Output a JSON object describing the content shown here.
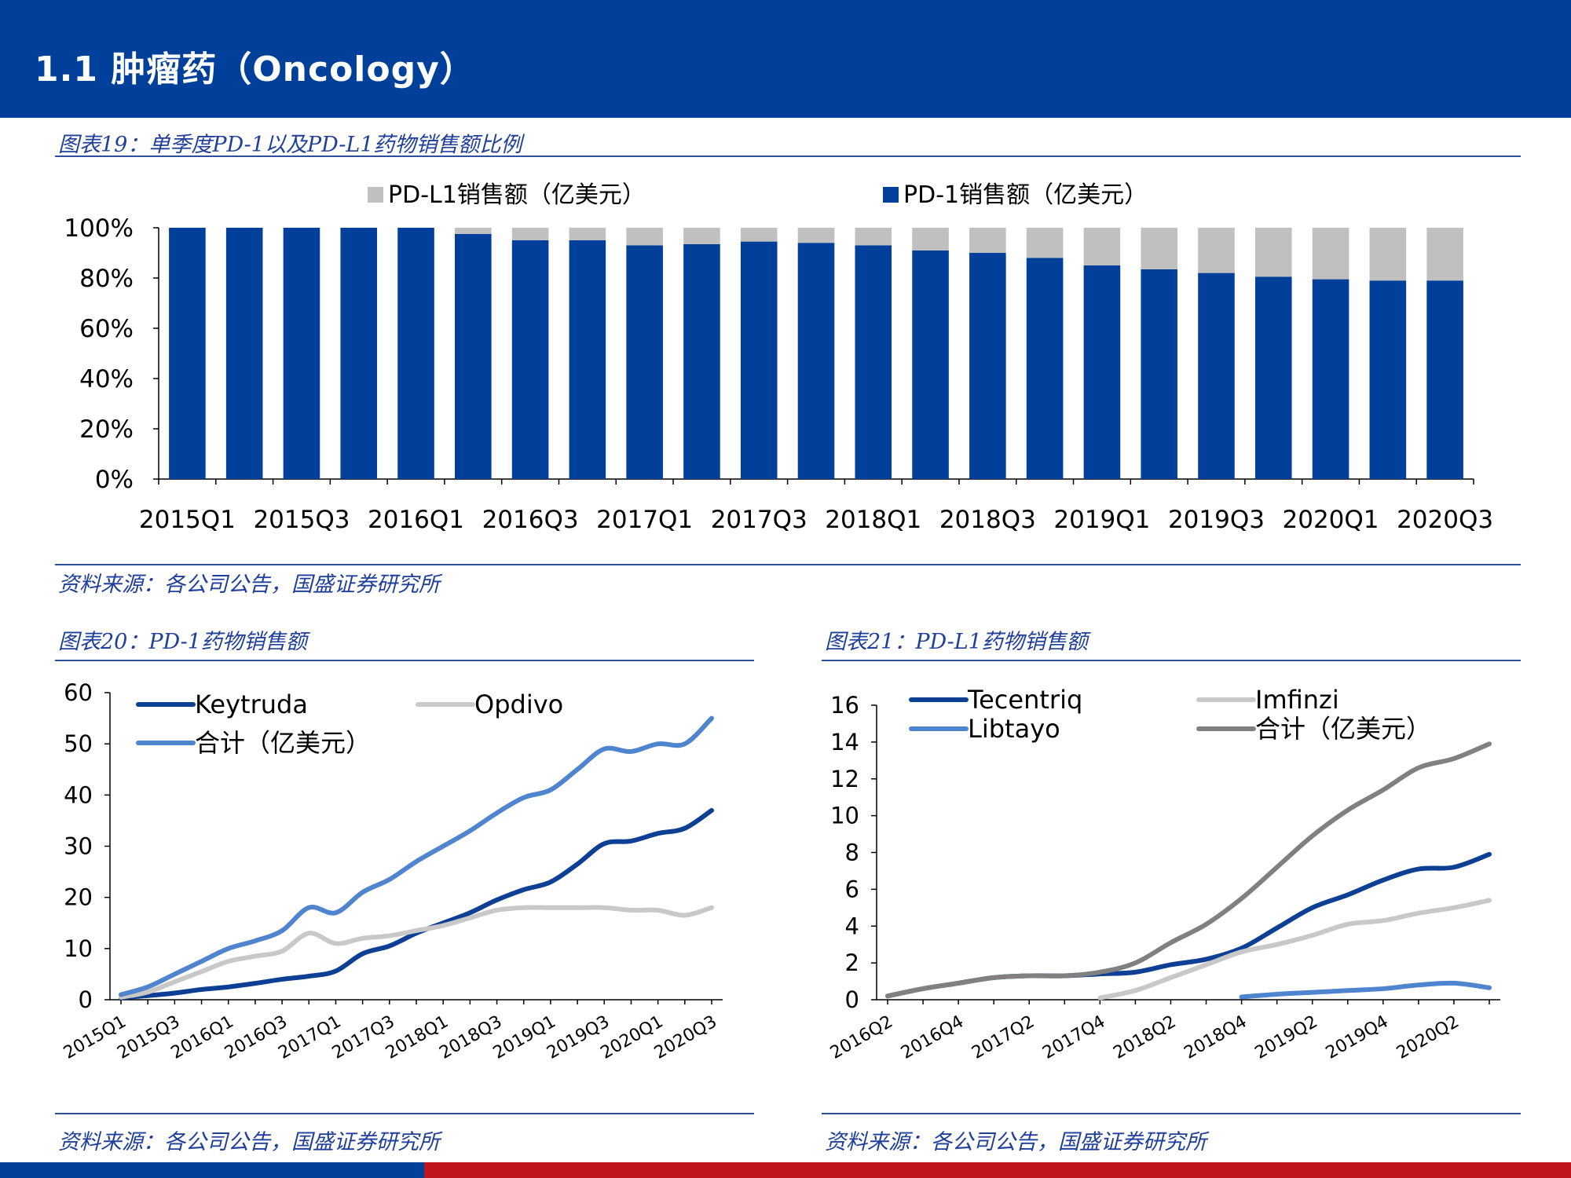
{
  "page": {
    "title": "1.1 肿瘤药（Oncology）",
    "colors": {
      "header": "#003f9a",
      "caption": "#1f3f9a",
      "footer_blue": "#003f9a",
      "footer_red": "#c0151d"
    }
  },
  "figures": [
    {
      "caption": "图表19：单季度PD-1以及PD-L1药物销售额比例",
      "source": "资料来源：各公司公告，国盛证券研究所"
    },
    {
      "caption": "图表20：PD-1药物销售额",
      "source": "资料来源：各公司公告，国盛证券研究所"
    },
    {
      "caption": "图表21：PD-L1药物销售额",
      "source": "资料来源：各公司公告，国盛证券研究所"
    }
  ],
  "chart_data": [
    {
      "type": "bar",
      "stacked": true,
      "percent": true,
      "categories": [
        "2015Q1",
        "2015Q2",
        "2015Q3",
        "2015Q4",
        "2016Q1",
        "2016Q2",
        "2016Q3",
        "2016Q4",
        "2017Q1",
        "2017Q2",
        "2017Q3",
        "2017Q4",
        "2018Q1",
        "2018Q2",
        "2018Q3",
        "2018Q4",
        "2019Q1",
        "2019Q2",
        "2019Q3",
        "2019Q4",
        "2020Q1",
        "2020Q2",
        "2020Q3"
      ],
      "tick_labels": [
        "2015Q1",
        "2015Q3",
        "2016Q1",
        "2016Q3",
        "2017Q1",
        "2017Q3",
        "2018Q1",
        "2018Q3",
        "2019Q1",
        "2019Q3",
        "2020Q1",
        "2020Q3"
      ],
      "series": [
        {
          "name": "PD-1销售额（亿美元）",
          "color": "#003f9a",
          "values": [
            100,
            100,
            100,
            100,
            100,
            97.5,
            95,
            95,
            93,
            93.5,
            94.5,
            94,
            93,
            91,
            90,
            88,
            85,
            83.5,
            82,
            80.5,
            79.5,
            79,
            79
          ]
        },
        {
          "name": "PD-L1销售额（亿美元）",
          "color": "#c0c0c0",
          "values": [
            0,
            0,
            0,
            0,
            0,
            2.5,
            5,
            5,
            7,
            6.5,
            5.5,
            6,
            7,
            9,
            10,
            12,
            15,
            16.5,
            18,
            19.5,
            20.5,
            21,
            21
          ]
        }
      ],
      "ylim": [
        0,
        100
      ],
      "yticks": [
        "0%",
        "20%",
        "40%",
        "60%",
        "80%",
        "100%"
      ],
      "legend": "top"
    },
    {
      "type": "line",
      "x": [
        "2015Q1",
        "2015Q2",
        "2015Q3",
        "2015Q4",
        "2016Q1",
        "2016Q2",
        "2016Q3",
        "2016Q4",
        "2017Q1",
        "2017Q2",
        "2017Q3",
        "2017Q4",
        "2018Q1",
        "2018Q2",
        "2018Q3",
        "2018Q4",
        "2019Q1",
        "2019Q2",
        "2019Q3",
        "2019Q4",
        "2020Q1",
        "2020Q2",
        "2020Q3"
      ],
      "tick_labels": [
        "2015Q1",
        "2015Q3",
        "2016Q1",
        "2016Q3",
        "2017Q1",
        "2017Q3",
        "2018Q1",
        "2018Q3",
        "2019Q1",
        "2019Q3",
        "2020Q1",
        "2020Q3"
      ],
      "series": [
        {
          "name": "Keytruda",
          "color": "#0d3f95",
          "values": [
            0.4,
            0.8,
            1.3,
            2.0,
            2.5,
            3.2,
            4.0,
            4.6,
            5.6,
            9.0,
            10.5,
            13.0,
            15.0,
            17.0,
            19.5,
            21.5,
            23.0,
            26.5,
            30.5,
            31.0,
            32.5,
            33.5,
            37.0
          ]
        },
        {
          "name": "Opdivo",
          "color": "#c8c8c8",
          "values": [
            0.5,
            1.5,
            3.5,
            5.5,
            7.5,
            8.5,
            9.5,
            13.0,
            11.0,
            12.0,
            12.5,
            13.5,
            14.5,
            16.0,
            17.5,
            18.0,
            18.0,
            18.0,
            18.0,
            17.5,
            17.5,
            16.5,
            18.0
          ]
        },
        {
          "name": "合计（亿美元）",
          "color": "#4f84cf",
          "values": [
            1.0,
            2.5,
            5.0,
            7.5,
            10.0,
            11.5,
            13.5,
            18.0,
            17.0,
            21.0,
            23.5,
            27.0,
            30.0,
            33.0,
            36.5,
            39.5,
            41.0,
            45.0,
            49.0,
            48.5,
            50.0,
            50.0,
            55.0
          ]
        }
      ],
      "ylim": [
        0,
        60
      ],
      "yticks": [
        0,
        10,
        20,
        30,
        40,
        50,
        60
      ],
      "legend": "top-left"
    },
    {
      "type": "line",
      "x": [
        "2016Q2",
        "2016Q3",
        "2016Q4",
        "2017Q1",
        "2017Q2",
        "2017Q3",
        "2017Q4",
        "2018Q1",
        "2018Q2",
        "2018Q3",
        "2018Q4",
        "2019Q1",
        "2019Q2",
        "2019Q3",
        "2019Q4",
        "2020Q1",
        "2020Q2",
        "2020Q3"
      ],
      "tick_labels": [
        "2016Q2",
        "2016Q4",
        "2017Q2",
        "2017Q4",
        "2018Q2",
        "2018Q4",
        "2019Q2",
        "2019Q4",
        "2020Q2"
      ],
      "series": [
        {
          "name": "Tecentriq",
          "color": "#0d3f95",
          "values": [
            0.2,
            0.6,
            0.9,
            1.2,
            1.3,
            1.3,
            1.4,
            1.5,
            1.9,
            2.2,
            2.8,
            3.9,
            5.0,
            5.7,
            6.5,
            7.1,
            7.2,
            7.9
          ]
        },
        {
          "name": "Imfinzi",
          "color": "#c8c8c8",
          "values": [
            null,
            null,
            null,
            null,
            null,
            null,
            0.1,
            0.5,
            1.2,
            1.9,
            2.6,
            3.0,
            3.5,
            4.1,
            4.3,
            4.7,
            5.0,
            5.4
          ]
        },
        {
          "name": "Libtayo",
          "color": "#4f84cf",
          "values": [
            null,
            null,
            null,
            null,
            null,
            null,
            null,
            null,
            null,
            null,
            0.15,
            0.3,
            0.4,
            0.5,
            0.6,
            0.8,
            0.9,
            0.65
          ]
        },
        {
          "name": "合计（亿美元）",
          "color": "#808080",
          "values": [
            0.2,
            0.6,
            0.9,
            1.2,
            1.3,
            1.3,
            1.5,
            2.0,
            3.1,
            4.1,
            5.5,
            7.2,
            8.9,
            10.3,
            11.4,
            12.6,
            13.1,
            13.9
          ]
        }
      ],
      "ylim": [
        0,
        16
      ],
      "yticks": [
        0,
        2,
        4,
        6,
        8,
        10,
        12,
        14,
        16
      ],
      "legend": "top"
    }
  ]
}
